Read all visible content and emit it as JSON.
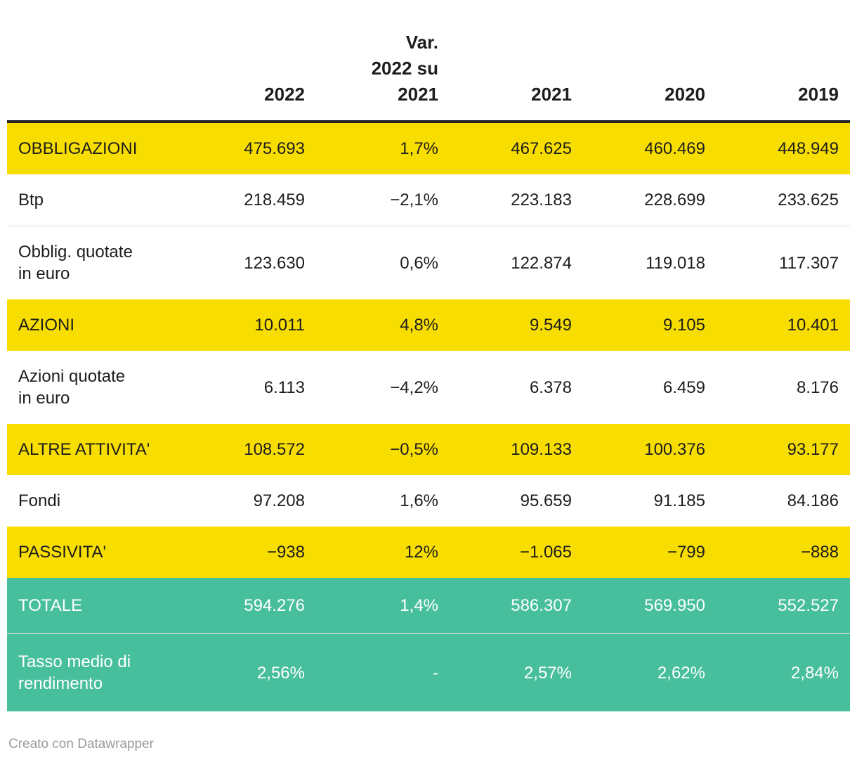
{
  "chart_data": {
    "type": "table",
    "columns": [
      "",
      "2022",
      "Var. 2022 su 2021",
      "2021",
      "2020",
      "2019"
    ],
    "header": {
      "year_2022": "2022",
      "var_lines": [
        "Var.",
        "2022 su",
        "2021"
      ],
      "year_2021": "2021",
      "year_2020": "2020",
      "year_2019": "2019"
    },
    "rows": [
      {
        "label": "OBBLIGAZIONI",
        "style": "yellow",
        "values": [
          "475.693",
          "1,7%",
          "467.625",
          "460.469",
          "448.949"
        ]
      },
      {
        "label": "Btp",
        "style": "white",
        "values": [
          "218.459",
          "−2,1%",
          "223.183",
          "228.699",
          "233.625"
        ]
      },
      {
        "label": "Obblig. quotate in euro",
        "style": "white",
        "label_lines": [
          "Obblig. quotate",
          "in euro"
        ],
        "values": [
          "123.630",
          "0,6%",
          "122.874",
          "119.018",
          "117.307"
        ]
      },
      {
        "label": "AZIONI",
        "style": "yellow",
        "values": [
          "10.011",
          "4,8%",
          "9.549",
          "9.105",
          "10.401"
        ]
      },
      {
        "label": "Azioni quotate in euro",
        "style": "white",
        "label_lines": [
          "Azioni quotate",
          "in euro"
        ],
        "values": [
          "6.113",
          "−4,2%",
          "6.378",
          "6.459",
          "8.176"
        ]
      },
      {
        "label": "ALTRE ATTIVITA'",
        "style": "yellow",
        "values": [
          "108.572",
          "−0,5%",
          "109.133",
          "100.376",
          "93.177"
        ]
      },
      {
        "label": "Fondi",
        "style": "white",
        "values": [
          "97.208",
          "1,6%",
          "95.659",
          "91.185",
          "84.186"
        ]
      },
      {
        "label": "PASSIVITA'",
        "style": "yellow",
        "values": [
          "−938",
          "12%",
          "−1.065",
          "−799",
          "−888"
        ]
      },
      {
        "label": "TOTALE",
        "style": "teal",
        "values": [
          "594.276",
          "1,4%",
          "586.307",
          "569.950",
          "552.527"
        ]
      },
      {
        "label": "Tasso medio di rendimento",
        "style": "teal",
        "label_lines": [
          "Tasso medio di",
          "rendimento"
        ],
        "values": [
          "2,56%",
          "-",
          "2,57%",
          "2,62%",
          "2,84%"
        ]
      }
    ],
    "footer_credit": "Creato con Datawrapper",
    "colors": {
      "highlight_yellow": "#f8de00",
      "total_teal": "#47be9c",
      "header_border": "#262626",
      "row_divider": "#dddddd",
      "text": "#1d1d1d",
      "text_on_teal": "#ffffff",
      "footer_text": "#9b9b9b"
    }
  }
}
